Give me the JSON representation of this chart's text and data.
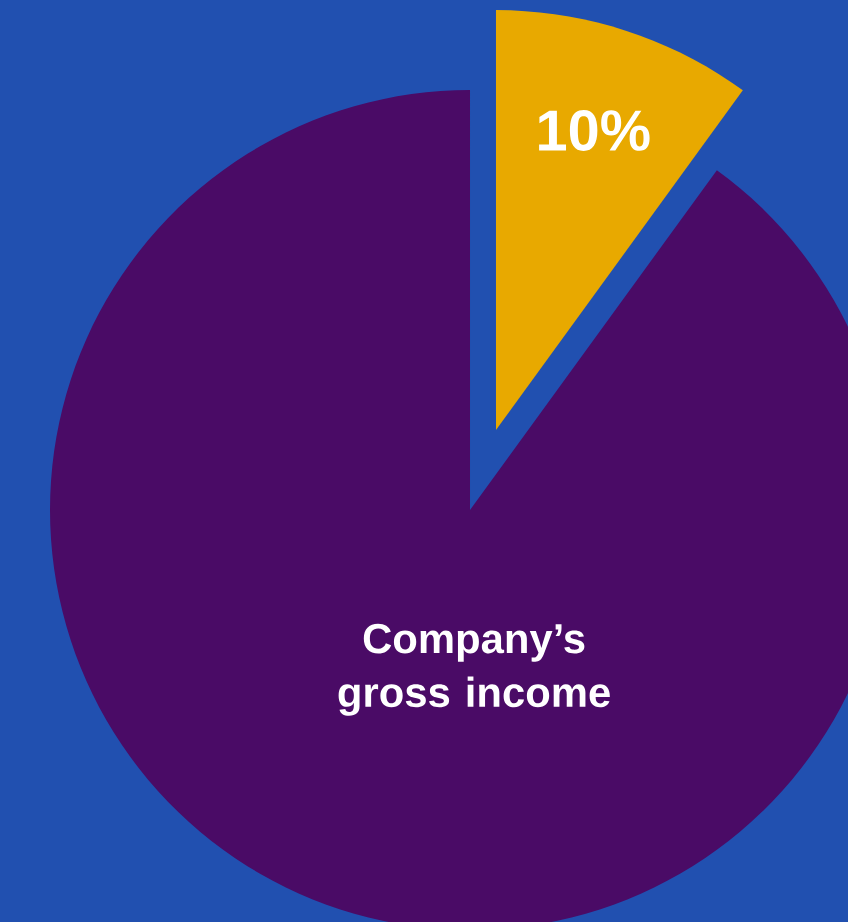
{
  "chart_data": {
    "type": "pie",
    "categories": [
      null,
      "Company’s gross income"
    ],
    "values": [
      10,
      90
    ],
    "colors": [
      "#e8a900",
      "#4a0b66"
    ],
    "value_labels": [
      "10%",
      null
    ]
  }
}
